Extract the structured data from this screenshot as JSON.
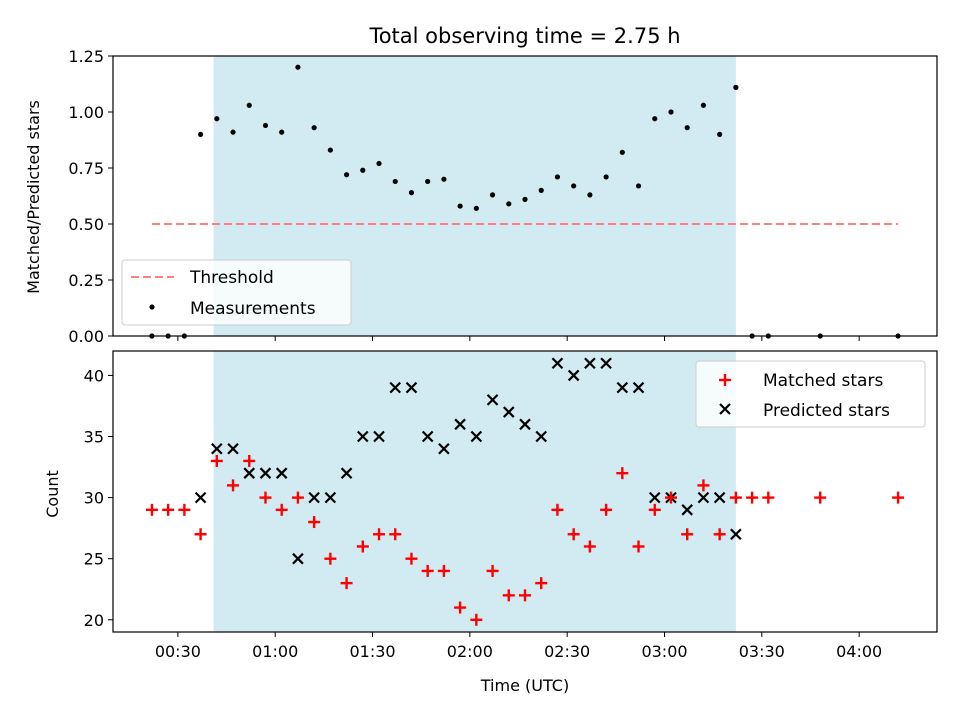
{
  "figure": {
    "title": "Total observing time = 2.75 h"
  },
  "colors": {
    "shade": "#add8e6",
    "threshold": "#ff7f7f",
    "matched": "#ff0000",
    "predicted": "#000000",
    "measurement": "#000000"
  },
  "chart_data": [
    {
      "type": "scatter",
      "ylabel": "Matched/Predicted stars",
      "ylim": [
        0,
        1.25
      ],
      "yticks": [
        0.0,
        0.25,
        0.5,
        0.75,
        1.0,
        1.25
      ],
      "ytick_labels": [
        "0.00",
        "0.25",
        "0.50",
        "0.75",
        "1.00",
        "1.25"
      ],
      "xlim": [
        "00:10",
        "04:24"
      ],
      "xticks": [
        "00:30",
        "01:00",
        "01:30",
        "02:00",
        "02:30",
        "03:00",
        "03:30",
        "04:00"
      ],
      "observing_window": [
        "00:41",
        "03:22"
      ],
      "threshold": {
        "label": "Threshold",
        "y": 0.5,
        "x": [
          "00:22",
          "04:12"
        ],
        "style": "dashed"
      },
      "legend": {
        "position": "lower-left",
        "entries": [
          "Threshold",
          "Measurements"
        ]
      },
      "series": [
        {
          "name": "Measurements",
          "x": [
            "00:22",
            "00:27",
            "00:32",
            "00:37",
            "00:42",
            "00:47",
            "00:52",
            "00:57",
            "01:02",
            "01:07",
            "01:12",
            "01:17",
            "01:22",
            "01:27",
            "01:32",
            "01:37",
            "01:42",
            "01:47",
            "01:52",
            "01:57",
            "02:02",
            "02:07",
            "02:12",
            "02:17",
            "02:22",
            "02:27",
            "02:32",
            "02:37",
            "02:42",
            "02:47",
            "02:52",
            "02:57",
            "03:02",
            "03:07",
            "03:12",
            "03:17",
            "03:22",
            "03:27",
            "03:32",
            "03:48",
            "04:12"
          ],
          "y": [
            0.0,
            0.0,
            0.0,
            0.9,
            0.97,
            0.91,
            1.03,
            0.94,
            0.91,
            1.2,
            0.93,
            0.83,
            0.72,
            0.74,
            0.77,
            0.69,
            0.64,
            0.69,
            0.7,
            0.58,
            0.57,
            0.63,
            0.59,
            0.61,
            0.65,
            0.71,
            0.67,
            0.63,
            0.71,
            0.82,
            0.67,
            0.97,
            1.0,
            0.93,
            1.03,
            0.9,
            1.11,
            0.0,
            0.0,
            0.0,
            0.0
          ]
        }
      ]
    },
    {
      "type": "scatter",
      "xlabel": "Time (UTC)",
      "ylabel": "Count",
      "ylim": [
        19,
        42
      ],
      "yticks": [
        20,
        25,
        30,
        35,
        40
      ],
      "xlim": [
        "00:10",
        "04:24"
      ],
      "xticks": [
        "00:30",
        "01:00",
        "01:30",
        "02:00",
        "02:30",
        "03:00",
        "03:30",
        "04:00"
      ],
      "observing_window": [
        "00:41",
        "03:22"
      ],
      "legend": {
        "position": "top-right",
        "entries": [
          "Matched stars",
          "Predicted stars"
        ]
      },
      "series": [
        {
          "name": "Matched stars",
          "marker": "plus",
          "x": [
            "00:22",
            "00:27",
            "00:32",
            "00:37",
            "00:42",
            "00:47",
            "00:52",
            "00:57",
            "01:02",
            "01:07",
            "01:12",
            "01:17",
            "01:22",
            "01:27",
            "01:32",
            "01:37",
            "01:42",
            "01:47",
            "01:52",
            "01:57",
            "02:02",
            "02:07",
            "02:12",
            "02:17",
            "02:22",
            "02:27",
            "02:32",
            "02:37",
            "02:42",
            "02:47",
            "02:52",
            "02:57",
            "03:02",
            "03:07",
            "03:12",
            "03:17",
            "03:22",
            "03:27",
            "03:32",
            "03:48",
            "04:12"
          ],
          "y": [
            29,
            29,
            29,
            27,
            33,
            31,
            33,
            30,
            29,
            30,
            28,
            25,
            23,
            26,
            27,
            27,
            25,
            24,
            24,
            21,
            20,
            24,
            22,
            22,
            23,
            29,
            27,
            26,
            29,
            32,
            26,
            29,
            30,
            27,
            31,
            27,
            30,
            30,
            30,
            30,
            30
          ]
        },
        {
          "name": "Predicted stars",
          "marker": "x",
          "x": [
            "00:37",
            "00:42",
            "00:47",
            "00:52",
            "00:57",
            "01:02",
            "01:07",
            "01:12",
            "01:17",
            "01:22",
            "01:27",
            "01:32",
            "01:37",
            "01:42",
            "01:47",
            "01:52",
            "01:57",
            "02:02",
            "02:07",
            "02:12",
            "02:17",
            "02:22",
            "02:27",
            "02:32",
            "02:37",
            "02:42",
            "02:47",
            "02:52",
            "02:57",
            "03:02",
            "03:07",
            "03:12",
            "03:17",
            "03:22"
          ],
          "y": [
            30,
            34,
            34,
            32,
            32,
            32,
            25,
            30,
            30,
            32,
            35,
            35,
            39,
            39,
            35,
            34,
            36,
            35,
            38,
            37,
            36,
            35,
            41,
            40,
            41,
            41,
            39,
            39,
            30,
            30,
            29,
            30,
            30,
            27
          ]
        }
      ]
    }
  ]
}
